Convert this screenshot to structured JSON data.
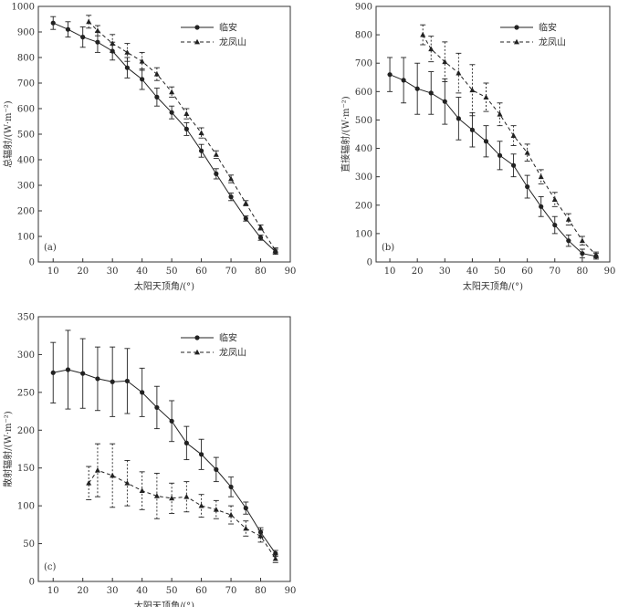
{
  "chart_data": [
    {
      "type": "line",
      "panel_label": "(a)",
      "xlabel": "太阳天顶角/(°)",
      "ylabel": "总辐射/(W·m⁻²)",
      "xlim": [
        5,
        90
      ],
      "ylim": [
        0,
        1000
      ],
      "xticks": [
        10,
        20,
        30,
        40,
        50,
        60,
        70,
        80,
        90
      ],
      "yticks": [
        0,
        100,
        200,
        300,
        400,
        500,
        600,
        700,
        800,
        900,
        1000
      ],
      "legend_position": "top-right",
      "series": [
        {
          "name": "临安",
          "style": "solid",
          "marker": "circle",
          "x": [
            10,
            15,
            20,
            25,
            30,
            35,
            40,
            45,
            50,
            55,
            60,
            65,
            70,
            75,
            80,
            85
          ],
          "y": [
            935,
            910,
            880,
            860,
            825,
            760,
            715,
            645,
            585,
            520,
            435,
            345,
            255,
            170,
            95,
            40
          ],
          "err": [
            25,
            30,
            40,
            40,
            35,
            40,
            40,
            35,
            25,
            25,
            25,
            20,
            15,
            10,
            10,
            10
          ]
        },
        {
          "name": "龙凤山",
          "style": "dashed",
          "marker": "triangle",
          "x": [
            22,
            25,
            30,
            35,
            40,
            45,
            50,
            55,
            60,
            65,
            70,
            75,
            80,
            85
          ],
          "y": [
            940,
            905,
            855,
            820,
            785,
            735,
            665,
            580,
            505,
            420,
            325,
            230,
            135,
            45
          ],
          "err": [
            25,
            20,
            35,
            35,
            35,
            25,
            20,
            20,
            20,
            15,
            15,
            10,
            10,
            10
          ]
        }
      ]
    },
    {
      "type": "line",
      "panel_label": "(b)",
      "xlabel": "太阳天顶角/(°)",
      "ylabel": "直接辐射/(W·m⁻²)",
      "xlim": [
        5,
        90
      ],
      "ylim": [
        0,
        900
      ],
      "xticks": [
        10,
        20,
        30,
        40,
        50,
        60,
        70,
        80,
        90
      ],
      "yticks": [
        0,
        100,
        200,
        300,
        400,
        500,
        600,
        700,
        800,
        900
      ],
      "legend_position": "top-right",
      "series": [
        {
          "name": "临安",
          "style": "solid",
          "marker": "circle",
          "x": [
            10,
            15,
            20,
            25,
            30,
            35,
            40,
            45,
            50,
            55,
            60,
            65,
            70,
            75,
            80,
            85
          ],
          "y": [
            660,
            640,
            610,
            595,
            565,
            505,
            465,
            425,
            375,
            340,
            265,
            195,
            130,
            75,
            30,
            20
          ],
          "err": [
            60,
            80,
            90,
            75,
            80,
            75,
            60,
            55,
            50,
            40,
            40,
            35,
            30,
            20,
            15,
            10
          ]
        },
        {
          "name": "龙凤山",
          "style": "dashed",
          "marker": "triangle",
          "x": [
            22,
            25,
            30,
            35,
            40,
            45,
            50,
            55,
            60,
            65,
            70,
            75,
            80,
            85
          ],
          "y": [
            800,
            750,
            705,
            665,
            605,
            580,
            520,
            445,
            385,
            300,
            220,
            150,
            75,
            25
          ],
          "err": [
            35,
            45,
            70,
            70,
            90,
            50,
            40,
            35,
            30,
            25,
            25,
            20,
            15,
            10
          ]
        }
      ]
    },
    {
      "type": "line",
      "panel_label": "(c)",
      "xlabel": "太阳天顶角/(°)",
      "ylabel": "散射辐射/(W·m⁻²)",
      "xlim": [
        5,
        90
      ],
      "ylim": [
        0,
        350
      ],
      "xticks": [
        10,
        20,
        30,
        40,
        50,
        60,
        70,
        80,
        90
      ],
      "yticks": [
        0,
        50,
        100,
        150,
        200,
        250,
        300,
        350
      ],
      "legend_position": "top-right",
      "series": [
        {
          "name": "临安",
          "style": "solid",
          "marker": "circle",
          "x": [
            10,
            15,
            20,
            25,
            30,
            35,
            40,
            45,
            50,
            55,
            60,
            65,
            70,
            75,
            80,
            85
          ],
          "y": [
            276,
            280,
            275,
            268,
            264,
            265,
            250,
            230,
            212,
            183,
            168,
            148,
            125,
            97,
            65,
            37
          ],
          "err": [
            40,
            52,
            46,
            42,
            46,
            43,
            32,
            28,
            27,
            22,
            20,
            16,
            13,
            8,
            6,
            4
          ]
        },
        {
          "name": "龙凤山",
          "style": "dashed",
          "marker": "triangle",
          "x": [
            22,
            25,
            30,
            35,
            40,
            45,
            50,
            55,
            60,
            65,
            70,
            75,
            80,
            85
          ],
          "y": [
            130,
            147,
            140,
            130,
            120,
            113,
            110,
            112,
            100,
            95,
            88,
            70,
            60,
            30
          ],
          "err": [
            22,
            35,
            42,
            30,
            25,
            30,
            20,
            20,
            15,
            12,
            12,
            10,
            8,
            5
          ]
        }
      ]
    }
  ]
}
